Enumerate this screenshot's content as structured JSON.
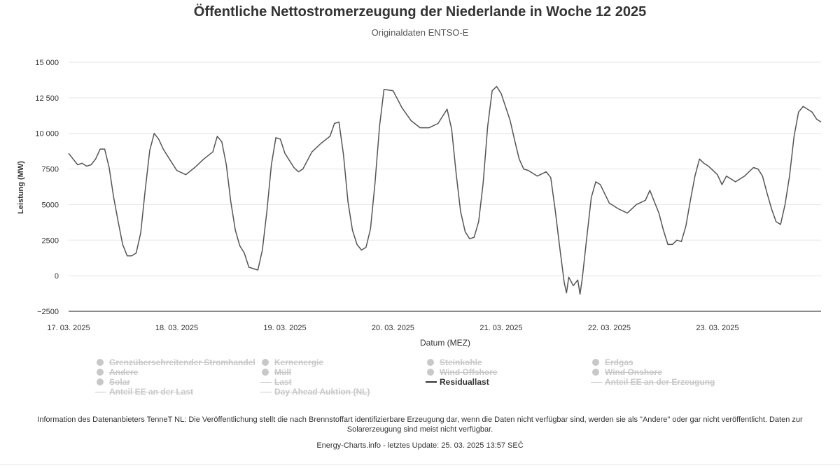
{
  "chart_data": {
    "type": "line",
    "title": "Öffentliche Nettostromerzeugung der Niederlande in Woche 12 2025",
    "subtitle": "Originaldaten ENTSO-E",
    "xlabel": "Datum (MEZ)",
    "ylabel": "Leistung (MW)",
    "ylim": [
      -2500,
      15000
    ],
    "yticks": [
      {
        "value": 15000,
        "label": "15 000"
      },
      {
        "value": 12500,
        "label": "12 500"
      },
      {
        "value": 10000,
        "label": "10 000"
      },
      {
        "value": 7500,
        "label": "7500"
      },
      {
        "value": 5000,
        "label": "5000"
      },
      {
        "value": 2500,
        "label": "2500"
      },
      {
        "value": 0,
        "label": "0"
      },
      {
        "value": -2500,
        "label": "−2500"
      }
    ],
    "xlim": [
      "2025-03-17 00:00",
      "2025-03-23 23:00"
    ],
    "xticks": [
      {
        "value": "2025-03-17",
        "label": "17. 03. 2025"
      },
      {
        "value": "2025-03-18",
        "label": "18. 03. 2025"
      },
      {
        "value": "2025-03-19",
        "label": "19. 03. 2025"
      },
      {
        "value": "2025-03-20",
        "label": "20. 03. 2025"
      },
      {
        "value": "2025-03-21",
        "label": "21. 03. 2025"
      },
      {
        "value": "2025-03-22",
        "label": "22. 03. 2025"
      },
      {
        "value": "2025-03-23",
        "label": "23. 03. 2025"
      }
    ],
    "grid": true,
    "legend_position": "bottom",
    "series": [
      {
        "name": "Residuallast",
        "color": "#555555",
        "points": [
          [
            "2025-03-17 00:00",
            8600
          ],
          [
            "2025-03-17 02:00",
            7800
          ],
          [
            "2025-03-17 03:00",
            7900
          ],
          [
            "2025-03-17 04:00",
            7700
          ],
          [
            "2025-03-17 05:00",
            7800
          ],
          [
            "2025-03-17 06:00",
            8200
          ],
          [
            "2025-03-17 07:00",
            8900
          ],
          [
            "2025-03-17 08:00",
            8900
          ],
          [
            "2025-03-17 09:00",
            7600
          ],
          [
            "2025-03-17 10:00",
            5500
          ],
          [
            "2025-03-17 11:00",
            3800
          ],
          [
            "2025-03-17 12:00",
            2200
          ],
          [
            "2025-03-17 13:00",
            1400
          ],
          [
            "2025-03-17 14:00",
            1400
          ],
          [
            "2025-03-17 15:00",
            1600
          ],
          [
            "2025-03-17 16:00",
            3000
          ],
          [
            "2025-03-17 17:00",
            6000
          ],
          [
            "2025-03-17 18:00",
            8800
          ],
          [
            "2025-03-17 19:00",
            10000
          ],
          [
            "2025-03-17 20:00",
            9600
          ],
          [
            "2025-03-17 21:00",
            8900
          ],
          [
            "2025-03-17 22:00",
            8400
          ],
          [
            "2025-03-18 00:00",
            7400
          ],
          [
            "2025-03-18 02:00",
            7100
          ],
          [
            "2025-03-18 04:00",
            7600
          ],
          [
            "2025-03-18 06:00",
            8200
          ],
          [
            "2025-03-18 08:00",
            8700
          ],
          [
            "2025-03-18 09:00",
            9800
          ],
          [
            "2025-03-18 10:00",
            9400
          ],
          [
            "2025-03-18 11:00",
            7800
          ],
          [
            "2025-03-18 12:00",
            5200
          ],
          [
            "2025-03-18 13:00",
            3200
          ],
          [
            "2025-03-18 14:00",
            2100
          ],
          [
            "2025-03-18 15:00",
            1600
          ],
          [
            "2025-03-18 16:00",
            600
          ],
          [
            "2025-03-18 17:00",
            500
          ],
          [
            "2025-03-18 18:00",
            400
          ],
          [
            "2025-03-18 19:00",
            1800
          ],
          [
            "2025-03-18 20:00",
            4500
          ],
          [
            "2025-03-18 21:00",
            7800
          ],
          [
            "2025-03-18 22:00",
            9700
          ],
          [
            "2025-03-18 23:00",
            9600
          ],
          [
            "2025-03-19 00:00",
            8600
          ],
          [
            "2025-03-19 02:00",
            7600
          ],
          [
            "2025-03-19 03:00",
            7300
          ],
          [
            "2025-03-19 04:00",
            7500
          ],
          [
            "2025-03-19 06:00",
            8700
          ],
          [
            "2025-03-19 08:00",
            9300
          ],
          [
            "2025-03-19 10:00",
            9800
          ],
          [
            "2025-03-19 11:00",
            10700
          ],
          [
            "2025-03-19 12:00",
            10800
          ],
          [
            "2025-03-19 13:00",
            8500
          ],
          [
            "2025-03-19 14:00",
            5200
          ],
          [
            "2025-03-19 15:00",
            3200
          ],
          [
            "2025-03-19 16:00",
            2200
          ],
          [
            "2025-03-19 17:00",
            1800
          ],
          [
            "2025-03-19 18:00",
            2000
          ],
          [
            "2025-03-19 19:00",
            3300
          ],
          [
            "2025-03-19 20:00",
            6500
          ],
          [
            "2025-03-19 21:00",
            10500
          ],
          [
            "2025-03-19 22:00",
            13100
          ],
          [
            "2025-03-20 00:00",
            13000
          ],
          [
            "2025-03-20 02:00",
            11800
          ],
          [
            "2025-03-20 04:00",
            10900
          ],
          [
            "2025-03-20 06:00",
            10400
          ],
          [
            "2025-03-20 08:00",
            10400
          ],
          [
            "2025-03-20 10:00",
            10700
          ],
          [
            "2025-03-20 12:00",
            11700
          ],
          [
            "2025-03-20 13:00",
            10300
          ],
          [
            "2025-03-20 14:00",
            7200
          ],
          [
            "2025-03-20 15:00",
            4500
          ],
          [
            "2025-03-20 16:00",
            3100
          ],
          [
            "2025-03-20 17:00",
            2600
          ],
          [
            "2025-03-20 18:00",
            2700
          ],
          [
            "2025-03-20 19:00",
            3800
          ],
          [
            "2025-03-20 20:00",
            6500
          ],
          [
            "2025-03-20 21:00",
            10500
          ],
          [
            "2025-03-20 22:00",
            13000
          ],
          [
            "2025-03-20 23:00",
            13300
          ],
          [
            "2025-03-21 00:00",
            12800
          ],
          [
            "2025-03-21 02:00",
            10900
          ],
          [
            "2025-03-21 03:00",
            9500
          ],
          [
            "2025-03-21 04:00",
            8200
          ],
          [
            "2025-03-21 05:00",
            7500
          ],
          [
            "2025-03-21 06:00",
            7400
          ],
          [
            "2025-03-21 08:00",
            7000
          ],
          [
            "2025-03-21 10:00",
            7300
          ],
          [
            "2025-03-21 11:00",
            6900
          ],
          [
            "2025-03-21 12:00",
            4600
          ],
          [
            "2025-03-21 13:00",
            2000
          ],
          [
            "2025-03-21 14:00",
            -500
          ],
          [
            "2025-03-21 14:30",
            -1200
          ],
          [
            "2025-03-21 15:00",
            -100
          ],
          [
            "2025-03-21 16:00",
            -700
          ],
          [
            "2025-03-21 17:00",
            -300
          ],
          [
            "2025-03-21 17:30",
            -1300
          ],
          [
            "2025-03-21 18:00",
            -200
          ],
          [
            "2025-03-21 19:00",
            2700
          ],
          [
            "2025-03-21 20:00",
            5500
          ],
          [
            "2025-03-21 21:00",
            6600
          ],
          [
            "2025-03-21 22:00",
            6400
          ],
          [
            "2025-03-22 00:00",
            5100
          ],
          [
            "2025-03-22 02:00",
            4700
          ],
          [
            "2025-03-22 04:00",
            4400
          ],
          [
            "2025-03-22 06:00",
            5000
          ],
          [
            "2025-03-22 08:00",
            5300
          ],
          [
            "2025-03-22 09:00",
            6000
          ],
          [
            "2025-03-22 10:00",
            5200
          ],
          [
            "2025-03-22 11:00",
            4400
          ],
          [
            "2025-03-22 12:00",
            3200
          ],
          [
            "2025-03-22 13:00",
            2200
          ],
          [
            "2025-03-22 14:00",
            2200
          ],
          [
            "2025-03-22 15:00",
            2500
          ],
          [
            "2025-03-22 16:00",
            2400
          ],
          [
            "2025-03-22 17:00",
            3500
          ],
          [
            "2025-03-22 18:00",
            5300
          ],
          [
            "2025-03-22 19:00",
            7000
          ],
          [
            "2025-03-22 20:00",
            8200
          ],
          [
            "2025-03-22 21:00",
            7900
          ],
          [
            "2025-03-22 22:00",
            7700
          ],
          [
            "2025-03-23 00:00",
            7100
          ],
          [
            "2025-03-23 01:00",
            6400
          ],
          [
            "2025-03-23 02:00",
            7000
          ],
          [
            "2025-03-23 04:00",
            6600
          ],
          [
            "2025-03-23 06:00",
            7000
          ],
          [
            "2025-03-23 08:00",
            7600
          ],
          [
            "2025-03-23 09:00",
            7500
          ],
          [
            "2025-03-23 10:00",
            7000
          ],
          [
            "2025-03-23 11:00",
            5800
          ],
          [
            "2025-03-23 12:00",
            4700
          ],
          [
            "2025-03-23 13:00",
            3800
          ],
          [
            "2025-03-23 14:00",
            3600
          ],
          [
            "2025-03-23 15:00",
            5000
          ],
          [
            "2025-03-23 16:00",
            7000
          ],
          [
            "2025-03-23 17:00",
            9800
          ],
          [
            "2025-03-23 18:00",
            11500
          ],
          [
            "2025-03-23 19:00",
            11900
          ],
          [
            "2025-03-23 20:00",
            11700
          ],
          [
            "2025-03-23 21:00",
            11500
          ],
          [
            "2025-03-23 22:00",
            11000
          ],
          [
            "2025-03-23 23:00",
            10800
          ]
        ]
      }
    ]
  },
  "legend": {
    "items": [
      {
        "label": "Grenzüberschreitender Stromhandel",
        "symbol": "dot",
        "active": false
      },
      {
        "label": "Kernenergie",
        "symbol": "dot",
        "active": false
      },
      {
        "label": "Steinkohle",
        "symbol": "dot",
        "active": false
      },
      {
        "label": "Erdgas",
        "symbol": "dot",
        "active": false
      },
      {
        "label": "Andere",
        "symbol": "dot",
        "active": false
      },
      {
        "label": "Müll",
        "symbol": "dot",
        "active": false
      },
      {
        "label": "Wind Offshore",
        "symbol": "dot",
        "active": false
      },
      {
        "label": "Wind Onshore",
        "symbol": "dot",
        "active": false
      },
      {
        "label": "Solar",
        "symbol": "dot",
        "active": false
      },
      {
        "label": "Last",
        "symbol": "line",
        "active": false
      },
      {
        "label": "Residuallast",
        "symbol": "line",
        "active": true
      },
      {
        "label": "Anteil EE an der Erzeugung",
        "symbol": "line",
        "active": false
      },
      {
        "label": "Anteil EE an der Last",
        "symbol": "line",
        "active": false
      },
      {
        "label": "Day Ahead Auktion (NL)",
        "symbol": "line",
        "active": false
      }
    ]
  },
  "footer": {
    "info": "Information des Datenanbieters TenneT NL: Die Veröffentlichung stellt die nach Brennstoffart identifizierbare Erzeugung dar, wenn die Daten nicht verfügbar sind, werden sie als \"Andere\" oder gar nicht veröffentlicht. Daten zur Solarerzeugung sind meist nicht verfügbar.",
    "credit": "Energy-Charts.info - letztes Update: 25. 03. 2025 13:57 SEČ"
  }
}
